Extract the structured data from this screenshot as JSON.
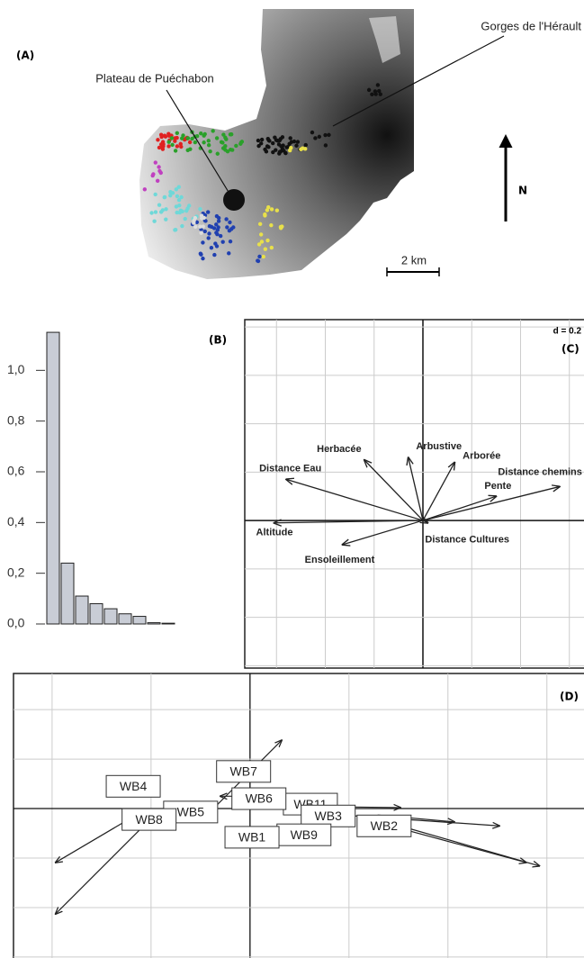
{
  "map": {
    "panel_label": "(A)",
    "plateau": "Plateau de Puéchabon",
    "gorges": "Gorges de l'Hérault",
    "north": "N",
    "scale": "2 km"
  },
  "chart_data": [
    {
      "type": "bar",
      "panel_label": "(B)",
      "values": [
        1.15,
        0.24,
        0.11,
        0.08,
        0.06,
        0.04,
        0.03,
        0.005,
        0.003
      ],
      "color": "#c9cdd6",
      "ylim": [
        0,
        1.2
      ],
      "yticks": [
        {
          "value": 0,
          "label": "0,0"
        },
        {
          "value": 0.2,
          "label": "0,2"
        },
        {
          "value": 0.4,
          "label": "0,4"
        },
        {
          "value": 0.6,
          "label": "0,6"
        },
        {
          "value": 0.8,
          "label": "0,8"
        },
        {
          "value": 1,
          "label": "1,0"
        }
      ]
    },
    {
      "type": "biplot",
      "panel_label": "(C)",
      "scale_label": "d = 0.2",
      "xlim": [
        -0.73,
        0.66
      ],
      "ylim": [
        -0.61,
        0.83
      ],
      "xticks": [
        -0.6,
        -0.4,
        -0.2,
        0,
        0.2,
        0.4,
        0.6
      ],
      "yticks": [
        -0.6,
        -0.4,
        -0.2,
        0,
        0.2,
        0.4,
        0.6,
        0.8
      ],
      "arrows": [
        {
          "label": "Distance Eau",
          "x": -0.56,
          "y": 0.17
        },
        {
          "label": "Herbacée",
          "x": -0.24,
          "y": 0.25
        },
        {
          "label": "Arbustive",
          "x": -0.06,
          "y": 0.26
        },
        {
          "label": "Arborée",
          "x": 0.13,
          "y": 0.24
        },
        {
          "label": "Pente",
          "x": 0.3,
          "y": 0.1
        },
        {
          "label": "Distance chemins",
          "x": 0.56,
          "y": 0.14
        },
        {
          "label": "Altitude",
          "x": -0.61,
          "y": -0.01
        },
        {
          "label": "Ensoleillement",
          "x": -0.33,
          "y": -0.1
        },
        {
          "label": "Distance Cultures",
          "x": 0.02,
          "y": -0.01
        }
      ]
    },
    {
      "type": "ordination",
      "panel_label": "(D)",
      "xlim": [
        -4.78,
        6.75
      ],
      "ylim": [
        -3.02,
        2.73
      ],
      "xticks": [
        -4,
        -2,
        0,
        2,
        4,
        6
      ],
      "yticks": [
        -3,
        -2,
        -1,
        0,
        1,
        2
      ],
      "arrows": [
        {
          "x0": -2.15,
          "y0": -0.04,
          "x1": -3.93,
          "y1": -1.09
        },
        {
          "x0": -1.93,
          "y0": -0.13,
          "x1": -3.93,
          "y1": -2.13
        },
        {
          "x0": -0.87,
          "y0": -0.13,
          "x1": 0.64,
          "y1": 1.38
        },
        {
          "x0": 0.4,
          "y0": 0.05,
          "x1": 3.04,
          "y1": 0.02
        },
        {
          "x0": 1.85,
          "y0": -0.13,
          "x1": 5.04,
          "y1": -0.35
        },
        {
          "x0": 2.22,
          "y0": -0.18,
          "x1": 5.58,
          "y1": -1.09
        },
        {
          "x0": 2.58,
          "y0": -0.22,
          "x1": 5.85,
          "y1": -1.16
        },
        {
          "x0": 2.58,
          "y0": -0.13,
          "x1": 4.13,
          "y1": -0.27
        },
        {
          "x0": -0.29,
          "y0": 0.25,
          "x1": -0.6,
          "y1": 0.25
        }
      ],
      "sites": [
        {
          "label": "WB11",
          "x": 1.22,
          "y": 0.09
        },
        {
          "label": "WB4",
          "x": -2.36,
          "y": 0.45
        },
        {
          "label": "WB7",
          "x": -0.13,
          "y": 0.75
        },
        {
          "label": "WB6",
          "x": 0.18,
          "y": 0.2
        },
        {
          "label": "WB5",
          "x": -1.2,
          "y": -0.07
        },
        {
          "label": "WB8",
          "x": -2.04,
          "y": -0.22
        },
        {
          "label": "WB3",
          "x": 1.58,
          "y": -0.15
        },
        {
          "label": "WB2",
          "x": 2.71,
          "y": -0.35
        },
        {
          "label": "WB9",
          "x": 1.09,
          "y": -0.53
        },
        {
          "label": "WB1",
          "x": 0.04,
          "y": -0.58
        }
      ]
    }
  ]
}
